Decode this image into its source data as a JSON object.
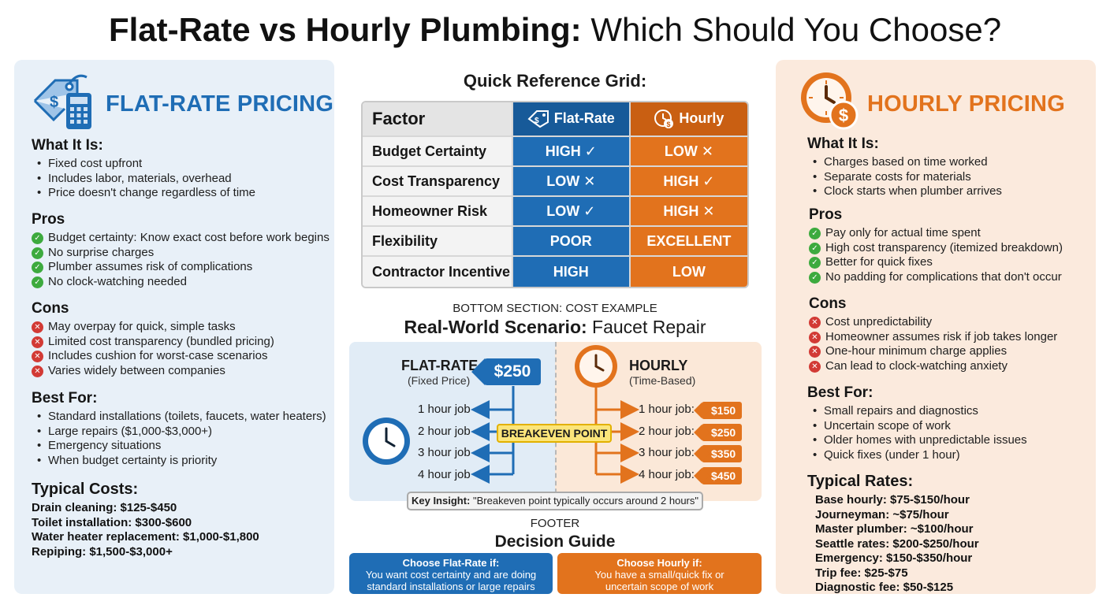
{
  "title": {
    "bold": "Flat-Rate vs Hourly Plumbing:",
    "rest": " Which Should You Choose?"
  },
  "colors": {
    "flat": "#1f6db5",
    "hourly": "#e2731d",
    "pro": "#3daa3e",
    "con": "#d23a35"
  },
  "flat": {
    "heading": "FLAT-RATE PRICING",
    "icon": "price-tag-calculator-icon",
    "what_title": "What It Is:",
    "what": [
      "Fixed cost upfront",
      "Includes labor, materials, overhead",
      "Price doesn't change regardless of time"
    ],
    "pros_title": "Pros",
    "pros": [
      "Budget certainty: Know exact cost before work begins",
      "No surprise charges",
      "Plumber assumes risk of complications",
      "No clock-watching needed"
    ],
    "cons_title": "Cons",
    "cons": [
      "May overpay for quick, simple tasks",
      "Limited cost transparency (bundled pricing)",
      "Includes cushion for worst-case scenarios",
      "Varies widely between companies"
    ],
    "best_title": "Best For:",
    "best": [
      "Standard installations (toilets, faucets, water heaters)",
      "Large repairs ($1,000-$3,000+)",
      "Emergency situations",
      "When budget certainty is priority"
    ],
    "costs_title": "Typical Costs:",
    "costs": [
      "Drain cleaning: $125-$450",
      "Toilet installation: $300-$600",
      "Water heater replacement: $1,000-$1,800",
      "Repiping: $1,500-$3,000+"
    ]
  },
  "hourly": {
    "heading": "HOURLY PRICING",
    "icon": "clock-dollar-icon",
    "what_title": "What It Is:",
    "what": [
      "Charges based on time worked",
      "Separate costs for materials",
      "Clock starts when plumber arrives"
    ],
    "pros_title": "Pros",
    "pros": [
      "Pay only for actual time spent",
      "High cost transparency (itemized breakdown)",
      "Better for quick fixes",
      "No padding for complications that don't occur"
    ],
    "cons_title": "Cons",
    "cons": [
      "Cost unpredictability",
      "Homeowner assumes risk if job takes longer",
      "One-hour minimum charge applies",
      "Can lead to clock-watching anxiety"
    ],
    "best_title": "Best For:",
    "best": [
      "Small repairs and diagnostics",
      "Uncertain scope of work",
      "Older homes with unpredictable issues",
      "Quick fixes (under 1 hour)"
    ],
    "rates_title": "Typical Rates:",
    "rates": [
      "Base hourly: $75-$150/hour",
      "Journeyman: ~$75/hour",
      "Master plumber: ~$100/hour",
      "Seattle rates: $200-$250/hour",
      "Emergency: $150-$350/hour",
      "Trip fee: $25-$75",
      "Diagnostic fee: $50-$125"
    ]
  },
  "grid": {
    "title": "Quick Reference Grid:",
    "headers": {
      "factor": "Factor",
      "flat": "Flat-Rate",
      "hourly": "Hourly"
    },
    "rows": [
      {
        "factor": "Budget Certainty",
        "flat": "HIGH ✓",
        "hourly": "LOW ✕"
      },
      {
        "factor": "Cost Transparency",
        "flat": "LOW ✕",
        "hourly": "HIGH ✓"
      },
      {
        "factor": "Homeowner Risk",
        "flat": "LOW ✓",
        "hourly": "HIGH ✕"
      },
      {
        "factor": "Flexibility",
        "flat": "POOR",
        "hourly": "EXCELLENT"
      },
      {
        "factor": "Contractor Incentive",
        "flat": "HIGH",
        "hourly": "LOW"
      }
    ]
  },
  "example": {
    "caption": "BOTTOM SECTION: COST EXAMPLE",
    "title_bold": "Real-World Scenario:",
    "title_rest": " Faucet Repair",
    "flat_label": "FLAT-RATE",
    "flat_sub": "(Fixed Price)",
    "flat_price": "$250",
    "hourly_label": "HOURLY",
    "hourly_sub": "(Time-Based)",
    "flat_jobs": [
      "1 hour job",
      "2 hour job",
      "3 hour job",
      "4 hour job"
    ],
    "hourly_jobs": [
      "1 hour job:",
      "2 hour job:",
      "3 hour job:",
      "4 hour job:"
    ],
    "hourly_prices": [
      "$150",
      "$250",
      "$350",
      "$450"
    ],
    "breakeven": "BREAKEVEN POINT",
    "insight_label": "Key Insight:",
    "insight_text": " \"Breakeven point typically occurs around 2 hours\""
  },
  "footer": {
    "caption": "FOOTER",
    "title": "Decision Guide",
    "flat_title": "Choose Flat-Rate if:",
    "flat_text": "You want cost certainty and are doing standard installations or large repairs",
    "hourly_title": "Choose Hourly if:",
    "hourly_text": "You have a small/quick fix or uncertain scope of work"
  }
}
